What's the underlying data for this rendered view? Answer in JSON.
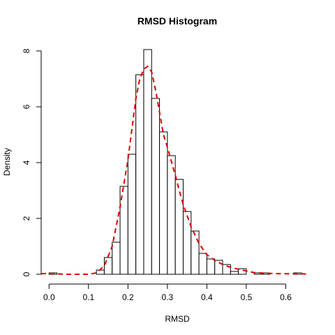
{
  "chart_data": {
    "type": "bar",
    "subtype": "histogram-with-density-curve",
    "title": "RMSD Histogram",
    "xlabel": "RMSD",
    "ylabel": "Density",
    "xlim": [
      -0.02,
      0.67
    ],
    "ylim": [
      0,
      8
    ],
    "x_ticks": [
      "0.0",
      "0.1",
      "0.2",
      "0.3",
      "0.4",
      "0.5",
      "0.6"
    ],
    "y_ticks": [
      "0",
      "2",
      "4",
      "6",
      "8"
    ],
    "bin_width": 0.02,
    "bins": [
      {
        "x0": 0.0,
        "x1": 0.02,
        "density": 0.05
      },
      {
        "x0": 0.02,
        "x1": 0.04,
        "density": 0
      },
      {
        "x0": 0.04,
        "x1": 0.06,
        "density": 0
      },
      {
        "x0": 0.06,
        "x1": 0.08,
        "density": 0
      },
      {
        "x0": 0.08,
        "x1": 0.1,
        "density": 0
      },
      {
        "x0": 0.1,
        "x1": 0.12,
        "density": 0
      },
      {
        "x0": 0.12,
        "x1": 0.14,
        "density": 0.15
      },
      {
        "x0": 0.14,
        "x1": 0.16,
        "density": 0.6
      },
      {
        "x0": 0.16,
        "x1": 0.18,
        "density": 1.15
      },
      {
        "x0": 0.18,
        "x1": 0.2,
        "density": 3.15
      },
      {
        "x0": 0.2,
        "x1": 0.22,
        "density": 4.3
      },
      {
        "x0": 0.22,
        "x1": 0.24,
        "density": 7.15
      },
      {
        "x0": 0.24,
        "x1": 0.26,
        "density": 8.05
      },
      {
        "x0": 0.26,
        "x1": 0.28,
        "density": 6.3
      },
      {
        "x0": 0.28,
        "x1": 0.3,
        "density": 5.1
      },
      {
        "x0": 0.3,
        "x1": 0.32,
        "density": 4.25
      },
      {
        "x0": 0.32,
        "x1": 0.34,
        "density": 3.4
      },
      {
        "x0": 0.34,
        "x1": 0.36,
        "density": 2.25
      },
      {
        "x0": 0.36,
        "x1": 0.38,
        "density": 1.55
      },
      {
        "x0": 0.38,
        "x1": 0.4,
        "density": 0.75
      },
      {
        "x0": 0.4,
        "x1": 0.42,
        "density": 0.55
      },
      {
        "x0": 0.42,
        "x1": 0.44,
        "density": 0.5
      },
      {
        "x0": 0.44,
        "x1": 0.46,
        "density": 0.35
      },
      {
        "x0": 0.46,
        "x1": 0.48,
        "density": 0.1
      },
      {
        "x0": 0.48,
        "x1": 0.5,
        "density": 0.2
      },
      {
        "x0": 0.5,
        "x1": 0.52,
        "density": 0
      },
      {
        "x0": 0.52,
        "x1": 0.54,
        "density": 0.05
      },
      {
        "x0": 0.54,
        "x1": 0.56,
        "density": 0.05
      },
      {
        "x0": 0.56,
        "x1": 0.58,
        "density": 0
      },
      {
        "x0": 0.58,
        "x1": 0.6,
        "density": 0
      },
      {
        "x0": 0.6,
        "x1": 0.62,
        "density": 0
      },
      {
        "x0": 0.62,
        "x1": 0.64,
        "density": 0.05
      }
    ],
    "density_curve": {
      "color": "#dd0000",
      "style": "dashed",
      "x": [
        -0.02,
        0.0,
        0.04,
        0.08,
        0.1,
        0.12,
        0.14,
        0.16,
        0.18,
        0.2,
        0.21,
        0.22,
        0.23,
        0.24,
        0.25,
        0.26,
        0.27,
        0.28,
        0.29,
        0.3,
        0.31,
        0.32,
        0.33,
        0.34,
        0.36,
        0.38,
        0.4,
        0.42,
        0.44,
        0.46,
        0.48,
        0.5,
        0.52,
        0.56,
        0.6,
        0.64,
        0.66
      ],
      "y": [
        0.02,
        0.03,
        0.0,
        0.0,
        0.0,
        0.05,
        0.3,
        1.0,
        2.4,
        4.1,
        5.2,
        6.3,
        7.0,
        7.35,
        7.45,
        7.25,
        6.6,
        5.8,
        5.0,
        4.55,
        4.05,
        3.55,
        3.0,
        2.5,
        1.7,
        1.1,
        0.7,
        0.5,
        0.35,
        0.25,
        0.18,
        0.12,
        0.06,
        0.03,
        0.02,
        0.02,
        0.0
      ]
    },
    "bar_fill": "#ffffff",
    "bar_stroke": "#000000",
    "grid": false,
    "legend": "none"
  }
}
